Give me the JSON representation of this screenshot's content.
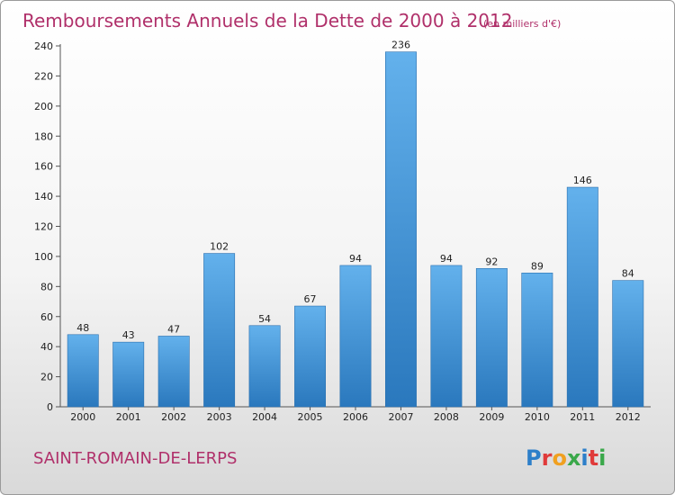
{
  "chart_data": {
    "type": "bar",
    "title": "Remboursements Annuels de la Dette de 2000 à 2012",
    "subtitle": "(en milliers d'€)",
    "categories": [
      "2000",
      "2001",
      "2002",
      "2003",
      "2004",
      "2005",
      "2006",
      "2007",
      "2008",
      "2009",
      "2010",
      "2011",
      "2012"
    ],
    "values": [
      48,
      43,
      47,
      102,
      54,
      67,
      94,
      236,
      94,
      92,
      89,
      146,
      84
    ],
    "ylim": [
      0,
      240
    ],
    "yticks": [
      0,
      20,
      40,
      60,
      80,
      100,
      120,
      140,
      160,
      180,
      200,
      220,
      240
    ],
    "grid": false,
    "bar_color": "#3a8fd6"
  },
  "footer": {
    "commune": "SAINT-ROMAIN-DE-LERPS",
    "logo_text": "Proxiti",
    "logo_colors": [
      "#2d7fc9",
      "#e03a3a",
      "#f0a020",
      "#3aa84a",
      "#2d7fc9",
      "#e03a3a",
      "#3aa84a"
    ]
  }
}
